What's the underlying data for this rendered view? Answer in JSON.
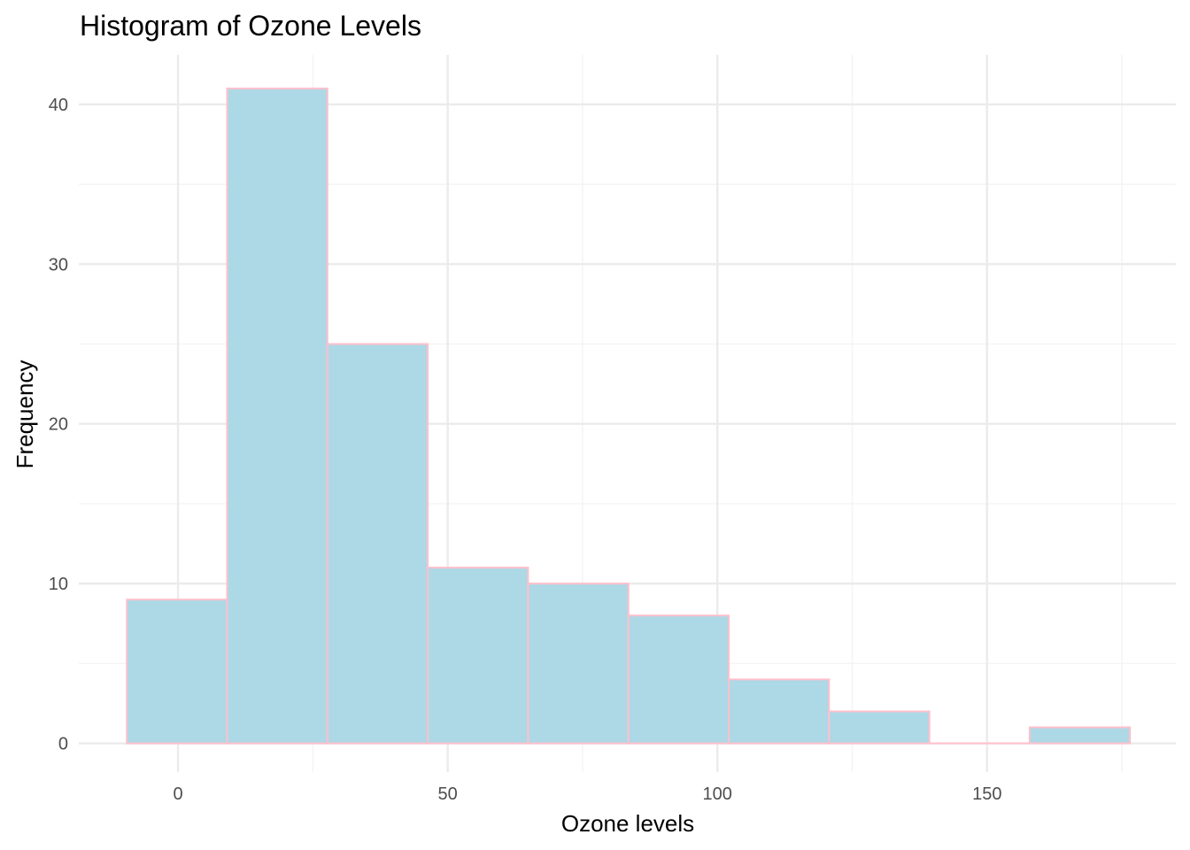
{
  "chart_data": {
    "type": "bar",
    "title": "Histogram of Ozone Levels",
    "xlabel": "Ozone levels",
    "ylabel": "Frequency",
    "xlim": [
      -18.4,
      185.0
    ],
    "ylim": [
      -1.8,
      43.1
    ],
    "x_ticks": [
      0,
      50,
      100,
      150
    ],
    "x_tick_labels": [
      "0",
      "50",
      "100",
      "150"
    ],
    "y_ticks": [
      0,
      10,
      20,
      30,
      40
    ],
    "y_tick_labels": [
      "0",
      "10",
      "20",
      "30",
      "40"
    ],
    "x_minor_ticks": [
      25,
      75,
      125,
      175
    ],
    "y_minor_ticks": [
      5,
      15,
      25,
      35
    ],
    "bins": [
      {
        "x0": -9.5,
        "x1": 9.1,
        "count": 9
      },
      {
        "x0": 9.1,
        "x1": 27.7,
        "count": 41
      },
      {
        "x0": 27.7,
        "x1": 46.3,
        "count": 25
      },
      {
        "x0": 46.3,
        "x1": 64.9,
        "count": 11
      },
      {
        "x0": 64.9,
        "x1": 83.5,
        "count": 10
      },
      {
        "x0": 83.5,
        "x1": 102.1,
        "count": 8
      },
      {
        "x0": 102.1,
        "x1": 120.7,
        "count": 4
      },
      {
        "x0": 120.7,
        "x1": 139.3,
        "count": 2
      },
      {
        "x0": 139.3,
        "x1": 157.9,
        "count": 0
      },
      {
        "x0": 157.9,
        "x1": 176.5,
        "count": 1
      }
    ],
    "grid": true,
    "bar_fill": "#add8e6",
    "bar_stroke": "#ffc0cb",
    "grid_major_color": "#ebebeb",
    "grid_minor_color": "#f2f2f2"
  }
}
